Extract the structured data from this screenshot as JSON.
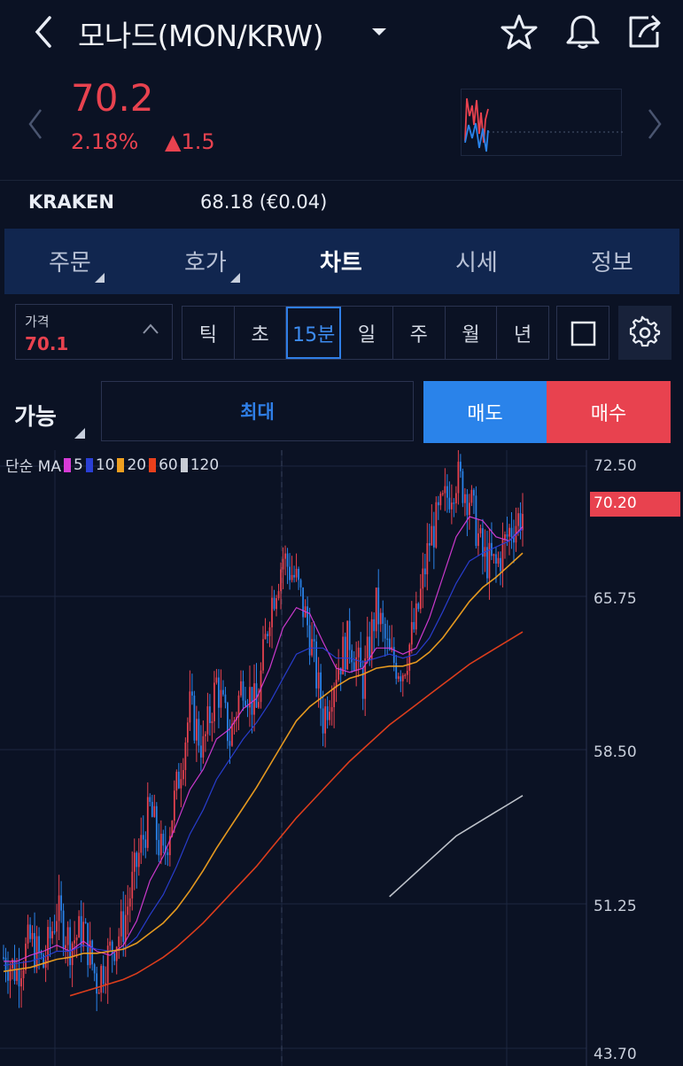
{
  "header": {
    "title": "모나드(MON/KRW)"
  },
  "quote": {
    "price": "70.2",
    "change_pct": "2.18%",
    "change_abs": "▲1.5"
  },
  "exchange": {
    "name": "KRAKEN",
    "value": "68.18 (€0.04)"
  },
  "tabs": [
    {
      "label": "주문",
      "active": false
    },
    {
      "label": "호가",
      "active": false
    },
    {
      "label": "차트",
      "active": true
    },
    {
      "label": "시세",
      "active": false
    },
    {
      "label": "정보",
      "active": false
    }
  ],
  "price_input": {
    "label": "가격",
    "value": "70.1"
  },
  "timeframes": [
    "틱",
    "초",
    "15분",
    "일",
    "주",
    "월",
    "년"
  ],
  "timeframe_selected": "15분",
  "order": {
    "avail_label": "가능",
    "max_label": "최대",
    "sell_label": "매도",
    "buy_label": "매수"
  },
  "colors": {
    "up": "#e8424f",
    "down": "#2a83ea",
    "accent": "#2f7ee6",
    "tabbar": "#11264f"
  },
  "chart_data": {
    "type": "candlestick",
    "legend": {
      "prefix": "단순 MA",
      "items": [
        {
          "name": "5",
          "color": "#d63bd6"
        },
        {
          "name": "10",
          "color": "#2a3fd6"
        },
        {
          "name": "20",
          "color": "#f0a020"
        },
        {
          "name": "60",
          "color": "#e8401c"
        },
        {
          "name": "120",
          "color": "#c8ccd4"
        }
      ]
    },
    "y_ticks": [
      "72.50",
      "65.75",
      "58.50",
      "51.25",
      "43.70"
    ],
    "last_price": "70.20",
    "ylim": [
      43.7,
      72.5
    ],
    "close_trend": [
      48.2,
      47.5,
      49.0,
      47.8,
      50.5,
      48.9,
      49.6,
      47.0,
      48.5,
      49.8,
      52.8,
      55.5,
      53.0,
      56.5,
      60.5,
      58.5,
      61.8,
      59.0,
      62.0,
      60.4,
      65.5,
      68.0,
      66.8,
      64.2,
      60.0,
      62.5,
      64.0,
      61.8,
      65.5,
      63.0,
      62.5,
      64.8,
      68.8,
      70.5,
      72.0,
      71.0,
      68.0,
      67.5,
      69.3,
      70.2
    ],
    "ma_series": {
      "ma5": [
        48.0,
        48.0,
        48.3,
        48.5,
        48.8,
        48.5,
        49.0,
        48.5,
        48.3,
        48.8,
        50.0,
        52.0,
        53.2,
        54.8,
        56.5,
        57.5,
        59.0,
        59.5,
        60.5,
        61.0,
        62.5,
        64.5,
        65.5,
        65.2,
        63.8,
        62.5,
        62.3,
        62.5,
        63.5,
        63.5,
        63.2,
        63.5,
        65.0,
        67.0,
        69.0,
        70.0,
        69.8,
        69.0,
        68.8,
        69.5
      ],
      "ma10": [
        47.8,
        47.9,
        48.0,
        48.2,
        48.5,
        48.5,
        48.8,
        48.6,
        48.5,
        48.6,
        49.2,
        50.3,
        51.3,
        52.7,
        54.3,
        55.5,
        57.0,
        58.0,
        59.0,
        59.8,
        60.8,
        62.0,
        63.2,
        63.5,
        63.5,
        63.0,
        63.0,
        62.8,
        63.0,
        63.2,
        63.0,
        63.2,
        64.0,
        65.3,
        66.7,
        67.8,
        68.2,
        68.5,
        68.8,
        69.4
      ],
      "ma20": [
        47.5,
        47.6,
        47.7,
        47.9,
        48.1,
        48.2,
        48.4,
        48.4,
        48.5,
        48.6,
        48.9,
        49.4,
        49.9,
        50.6,
        51.5,
        52.5,
        53.6,
        54.6,
        55.6,
        56.6,
        57.7,
        58.8,
        59.9,
        60.6,
        61.1,
        61.6,
        62.0,
        62.2,
        62.5,
        62.6,
        62.6,
        62.8,
        63.3,
        64.0,
        64.9,
        65.8,
        66.5,
        67.0,
        67.6,
        68.2
      ],
      "ma60": [
        null,
        null,
        null,
        null,
        null,
        46.3,
        46.5,
        46.7,
        46.9,
        47.1,
        47.4,
        47.8,
        48.2,
        48.7,
        49.3,
        49.9,
        50.6,
        51.3,
        52.0,
        52.7,
        53.5,
        54.3,
        55.1,
        55.8,
        56.5,
        57.2,
        57.9,
        58.5,
        59.1,
        59.7,
        60.2,
        60.7,
        61.2,
        61.7,
        62.2,
        62.7,
        63.1,
        63.5,
        63.9,
        64.3
      ],
      "ma120": [
        null,
        null,
        null,
        null,
        null,
        null,
        null,
        null,
        null,
        null,
        null,
        null,
        null,
        null,
        null,
        null,
        null,
        null,
        null,
        null,
        null,
        null,
        null,
        null,
        null,
        null,
        null,
        null,
        null,
        51.2,
        51.8,
        52.4,
        53.0,
        53.6,
        54.2,
        54.6,
        55.0,
        55.4,
        55.8,
        56.2
      ]
    }
  }
}
